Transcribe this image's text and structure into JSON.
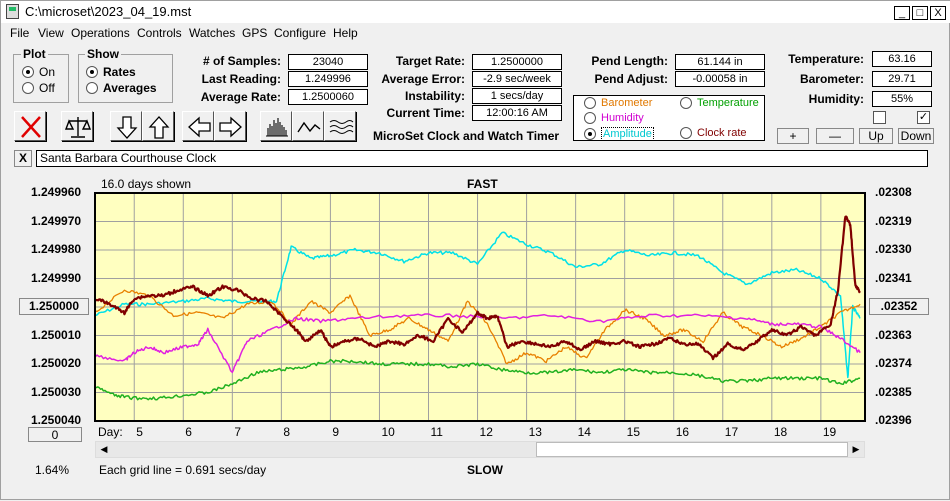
{
  "window": {
    "title": "C:\\microset\\2023_04_19.mst"
  },
  "window_buttons": {
    "minimize": "_",
    "maximize": "□",
    "close": "X"
  },
  "menu": [
    "File",
    "View",
    "Operations",
    "Controls",
    "Watches",
    "GPS",
    "Configure",
    "Help"
  ],
  "plot_group": {
    "title": "Plot",
    "options": [
      "On",
      "Off"
    ],
    "selected": "On"
  },
  "show_group": {
    "title": "Show",
    "options": [
      "Rates",
      "Averages"
    ],
    "selected": "Rates"
  },
  "stats": {
    "samples_label": "# of Samples:",
    "samples": "23040",
    "last_reading_label": "Last Reading:",
    "last_reading": "1.249996",
    "average_rate_label": "Average Rate:",
    "average_rate": "1.2500060"
  },
  "targets": {
    "target_rate_label": "Target Rate:",
    "target_rate": "1.2500000",
    "average_error_label": "Average Error:",
    "average_error": "-2.9 sec/week",
    "instability_label": "Instability:",
    "instability": "1 secs/day",
    "current_time_label": "Current Time:",
    "current_time": "12:00:16 AM"
  },
  "app_caption": "MicroSet Clock and Watch Timer",
  "pendulum": {
    "length_label": "Pend Length:",
    "length": "61.144 in",
    "adjust_label": "Pend Adjust:",
    "adjust": "-0.00058 in"
  },
  "environment": {
    "temperature_label": "Temperature:",
    "temperature": "63.16",
    "barometer_label": "Barometer:",
    "barometer": "29.71",
    "humidity_label": "Humidity:",
    "humidity": "55%"
  },
  "series_select": {
    "options": [
      {
        "label": "Barometer",
        "color": "#e07800"
      },
      {
        "label": "Temperature",
        "color": "#00a000"
      },
      {
        "label": "Humidity",
        "color": "#d000d0"
      },
      {
        "label": "Amplitude",
        "color": "#00c8d0"
      },
      {
        "label": "Clock rate",
        "color": "#800000"
      }
    ],
    "selected": "Amplitude"
  },
  "adjust_buttons": {
    "plus": "+",
    "minus": "—",
    "up": "Up",
    "down": "Down"
  },
  "checkboxes": {
    "left_checked": false,
    "right_checked": true,
    "right_mark": "✓"
  },
  "note_close": "X",
  "note": "Santa Barbara Courthouse Clock",
  "plot": {
    "days_shown": "16.0 days shown",
    "top_label": "FAST",
    "bottom_label": "SLOW",
    "center_button": "1.250000",
    "right_center_button": ".02352",
    "zero_button": "0",
    "percent": "1.64%",
    "grid_note": "Each grid line = 0.691 secs/day",
    "day_label": "Day:",
    "background": "#ffffc0"
  },
  "chart_data": {
    "type": "line",
    "left_axis_ticks": [
      "1.249960",
      "1.249970",
      "1.249980",
      "1.249990",
      "1.250000",
      "1.250010",
      "1.250020",
      "1.250030",
      "1.250040"
    ],
    "right_axis_ticks": [
      ".02308",
      ".02319",
      ".02330",
      ".02341",
      ".02352",
      ".02363",
      ".02374",
      ".02385",
      ".02396"
    ],
    "x_ticks": [
      5,
      6,
      7,
      8,
      9,
      10,
      11,
      12,
      13,
      14,
      15,
      16,
      17,
      18,
      19
    ],
    "xlim": [
      4.2,
      19.9
    ],
    "ylim": [
      1.24996,
      1.25004
    ],
    "series": [
      {
        "key": "amplitude",
        "color": "#00e0e8",
        "width": 1.5,
        "x": [
          4.2,
          4.8,
          5.3,
          6.0,
          6.5,
          7.0,
          7.5,
          7.9,
          8.2,
          8.6,
          9.0,
          9.5,
          10.0,
          10.5,
          11.0,
          11.5,
          12.0,
          12.5,
          13.0,
          13.5,
          14.0,
          14.5,
          15.0,
          15.5,
          16.0,
          16.5,
          17.0,
          17.5,
          18.0,
          18.5,
          19.0,
          19.4,
          19.55,
          19.65,
          19.8
        ],
        "y": [
          1.250003,
          1.249999,
          1.249999,
          1.249998,
          1.249997,
          1.249998,
          1.249998,
          1.249998,
          1.249979,
          1.249983,
          1.249982,
          1.24998,
          1.249981,
          1.249984,
          1.249981,
          1.249981,
          1.249985,
          1.249974,
          1.249978,
          1.249981,
          1.249986,
          1.249985,
          1.24998,
          1.249982,
          1.249981,
          1.249982,
          1.249988,
          1.249992,
          1.249988,
          1.249987,
          1.24999,
          1.249996,
          1.250025,
          1.25,
          1.250004
        ]
      },
      {
        "key": "barometer",
        "color": "#e88000",
        "width": 1.3,
        "x": [
          4.2,
          4.8,
          5.3,
          5.8,
          6.3,
          6.8,
          7.3,
          7.8,
          8.2,
          8.6,
          9.0,
          9.4,
          9.8,
          10.2,
          10.6,
          11.0,
          11.4,
          11.8,
          12.2,
          12.6,
          13.0,
          13.4,
          13.8,
          14.2,
          14.6,
          15.0,
          15.4,
          15.8,
          16.2,
          16.6,
          17.0,
          17.4,
          17.8,
          18.2,
          18.6,
          19.0,
          19.4,
          19.8
        ],
        "y": [
          1.250002,
          1.249994,
          1.249996,
          1.250003,
          1.250002,
          1.250004,
          1.249999,
          1.249998,
          1.250006,
          1.249998,
          1.250002,
          1.249996,
          1.25001,
          1.250008,
          1.250004,
          1.250008,
          1.250012,
          1.249998,
          1.250006,
          1.25002,
          1.250016,
          1.250019,
          1.250014,
          1.250018,
          1.250008,
          1.250001,
          1.250004,
          1.25001,
          1.250008,
          1.250012,
          1.250002,
          1.250007,
          1.25001,
          1.250014,
          1.250011,
          1.250007,
          1.250002,
          1.249999
        ]
      },
      {
        "key": "humidity",
        "color": "#e020e0",
        "width": 1.5,
        "x": [
          4.2,
          4.8,
          5.0,
          5.3,
          5.6,
          6.0,
          6.3,
          6.5,
          7.0,
          7.3,
          7.8,
          8.3,
          8.8,
          9.5,
          10.5,
          11.5,
          12.5,
          13.5,
          14.5,
          15.5,
          16.5,
          17.5,
          18.0,
          18.5,
          19.0,
          19.4,
          19.8
        ],
        "y": [
          1.250017,
          1.250019,
          1.250016,
          1.250014,
          1.250016,
          1.250014,
          1.250013,
          1.250008,
          1.250023,
          1.250012,
          1.250008,
          1.250004,
          1.250005,
          1.250004,
          1.250003,
          1.250003,
          1.250004,
          1.250003,
          1.250005,
          1.250003,
          1.250003,
          1.250004,
          1.250006,
          1.250006,
          1.250007,
          1.250011,
          1.250016
        ]
      },
      {
        "key": "temperature",
        "color": "#20b020",
        "width": 1.5,
        "x": [
          4.2,
          4.6,
          5.0,
          5.5,
          6.0,
          6.5,
          7.0,
          7.5,
          8.0,
          8.5,
          9.0,
          9.5,
          10.0,
          10.5,
          11.0,
          11.5,
          12.0,
          12.5,
          13.0,
          13.5,
          14.0,
          14.5,
          15.0,
          15.5,
          16.0,
          16.5,
          17.0,
          17.5,
          18.0,
          18.5,
          19.0,
          19.4,
          19.8
        ],
        "y": [
          1.250028,
          1.250031,
          1.250032,
          1.250032,
          1.250031,
          1.25003,
          1.250027,
          1.250023,
          1.250022,
          1.250021,
          1.250019,
          1.250019,
          1.25002,
          1.25002,
          1.25002,
          1.250021,
          1.25002,
          1.250022,
          1.250023,
          1.250023,
          1.250022,
          1.250023,
          1.250022,
          1.250023,
          1.250023,
          1.250024,
          1.250026,
          1.250026,
          1.250025,
          1.250025,
          1.250025,
          1.250027,
          1.250025
        ]
      },
      {
        "key": "clock_rate",
        "color": "#800000",
        "width": 2.2,
        "x": [
          4.2,
          4.5,
          4.8,
          5.0,
          5.3,
          5.6,
          5.9,
          6.2,
          6.5,
          6.8,
          7.1,
          7.4,
          7.7,
          8.0,
          8.3,
          8.5,
          8.8,
          9.0,
          9.3,
          9.6,
          9.9,
          10.2,
          10.5,
          10.8,
          11.1,
          11.4,
          11.7,
          12.0,
          12.2,
          12.4,
          12.6,
          12.9,
          13.2,
          13.5,
          13.8,
          14.1,
          14.4,
          14.7,
          15.0,
          15.3,
          15.6,
          15.9,
          16.2,
          16.5,
          16.8,
          17.1,
          17.4,
          17.7,
          18.0,
          18.3,
          18.6,
          18.9,
          19.2,
          19.35,
          19.5,
          19.6,
          19.7,
          19.8
        ],
        "y": [
          1.249997,
          1.249999,
          1.250002,
          1.249997,
          1.249996,
          1.249996,
          1.249994,
          1.249993,
          1.249996,
          1.249993,
          1.249994,
          1.249997,
          1.249998,
          1.250003,
          1.250008,
          1.250012,
          1.250008,
          1.250014,
          1.250012,
          1.250011,
          1.250014,
          1.250012,
          1.250013,
          1.25001,
          1.250012,
          1.250004,
          1.250009,
          1.250002,
          1.250004,
          1.250003,
          1.250014,
          1.250012,
          1.250013,
          1.250014,
          1.250012,
          1.250015,
          1.250012,
          1.250013,
          1.250012,
          1.250014,
          1.250013,
          1.250011,
          1.250013,
          1.250013,
          1.250018,
          1.250013,
          1.250015,
          1.250012,
          1.250008,
          1.25001,
          1.250007,
          1.25001,
          1.250006,
          1.249994,
          1.249968,
          1.249971,
          1.249992,
          1.249995
        ]
      }
    ]
  }
}
